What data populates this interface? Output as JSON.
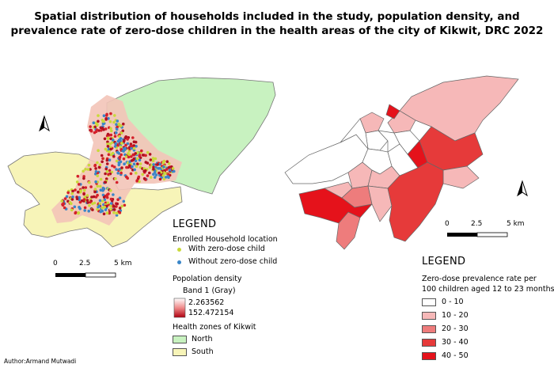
{
  "title_line1": "Spatial distribution of households included in the study, population density, and",
  "title_line2": "prevalence rate of zero-dose children in the health areas of the city of Kikwit, DRC 2022",
  "left_map": {
    "legend_title": "LEGEND",
    "household_heading": "Enrolled Household location",
    "with_zero_dose": "With zero-dose child",
    "without_zero_dose": "Without zero-dose child",
    "density_heading": "Popolation density",
    "band_label": "Band 1 (Gray)",
    "density_min": "2.263562",
    "density_max": "152.472154",
    "zones_heading": "Health zones of Kikwit",
    "zone_north": "North",
    "zone_south": "South",
    "scale_0": "0",
    "scale_mid": "2.5",
    "scale_max": "5 km"
  },
  "right_map": {
    "legend_title": "LEGEND",
    "rate_heading_1": "Zero-dose prevalence rate per",
    "rate_heading_2": "100 children aged 12 to 23 months",
    "classes": [
      "0 - 10",
      "10 - 20",
      "20 - 30",
      "30 - 40",
      "40 - 50"
    ],
    "class_colors": [
      "#ffffff",
      "#f6b8b8",
      "#ee7c7c",
      "#e63a3a",
      "#e5121b"
    ],
    "scale_0": "0",
    "scale_mid": "2.5",
    "scale_max": "5 km"
  },
  "colors": {
    "north_zone": "#c8f2c0",
    "south_zone": "#f7f4b8",
    "with_dot": "#c9d93a",
    "without_dot": "#3a86c8"
  },
  "icons": [
    "north-arrow-icon"
  ],
  "author": "Author:Armand Mutwadi"
}
